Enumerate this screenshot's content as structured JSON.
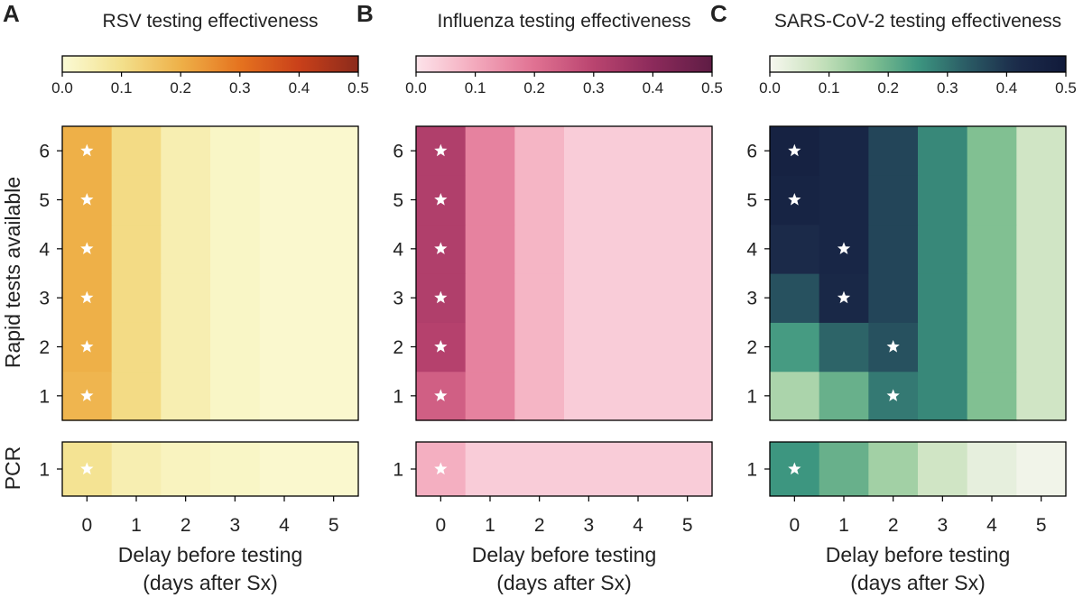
{
  "figure": {
    "ylabel_rapid": "Rapid tests available",
    "ylabel_pcr": "PCR",
    "xlabel_line1": "Delay before testing",
    "xlabel_line2": "(days after Sx)"
  },
  "chart_data": [
    {
      "type": "heatmap",
      "letter": "A",
      "title": "RSV testing effectiveness",
      "colormap": [
        "#fbfbd5",
        "#f3e08c",
        "#eeb048",
        "#e5731f",
        "#c9401a",
        "#8b2a1b"
      ],
      "colorbar": {
        "range": [
          0,
          0.5
        ],
        "ticks": [
          "0.0",
          "0.1",
          "0.2",
          "0.3",
          "0.4",
          "0.5"
        ]
      },
      "x": [
        0,
        1,
        2,
        3,
        4,
        5
      ],
      "x_ticks": [
        "0",
        "1",
        "2",
        "3",
        "4",
        "5"
      ],
      "rapid": {
        "y": [
          1,
          2,
          3,
          4,
          5,
          6
        ],
        "y_ticks": [
          "1",
          "2",
          "3",
          "4",
          "5",
          "6"
        ],
        "values": [
          [
            0.19,
            0.11,
            0.05,
            0.02,
            0.01,
            0.01
          ],
          [
            0.2,
            0.11,
            0.05,
            0.02,
            0.01,
            0.01
          ],
          [
            0.2,
            0.11,
            0.05,
            0.02,
            0.01,
            0.01
          ],
          [
            0.2,
            0.11,
            0.05,
            0.02,
            0.01,
            0.01
          ],
          [
            0.2,
            0.11,
            0.05,
            0.02,
            0.01,
            0.01
          ],
          [
            0.2,
            0.11,
            0.05,
            0.02,
            0.01,
            0.01
          ]
        ],
        "stars": [
          [
            0,
            0
          ],
          [
            0,
            1
          ],
          [
            0,
            2
          ],
          [
            0,
            3
          ],
          [
            0,
            4
          ],
          [
            0,
            5
          ]
        ]
      },
      "pcr": {
        "y_ticks": [
          "1"
        ],
        "values": [
          [
            0.09,
            0.05,
            0.03,
            0.02,
            0.01,
            0.01
          ]
        ],
        "stars": [
          [
            0,
            0
          ]
        ]
      }
    },
    {
      "type": "heatmap",
      "letter": "B",
      "title": "Influenza testing effectiveness",
      "colormap": [
        "#fde4ea",
        "#f3a9bc",
        "#e07192",
        "#b9446f",
        "#8c2a5b",
        "#5e1c44"
      ],
      "colorbar": {
        "range": [
          0,
          0.5
        ],
        "ticks": [
          "0.0",
          "0.1",
          "0.2",
          "0.3",
          "0.4",
          "0.5"
        ]
      },
      "x": [
        0,
        1,
        2,
        3,
        4,
        5
      ],
      "x_ticks": [
        "0",
        "1",
        "2",
        "3",
        "4",
        "5"
      ],
      "rapid": {
        "y": [
          1,
          2,
          3,
          4,
          5,
          6
        ],
        "y_ticks": [
          "1",
          "2",
          "3",
          "4",
          "5",
          "6"
        ],
        "values": [
          [
            0.24,
            0.17,
            0.08,
            0.04,
            0.04,
            0.04
          ],
          [
            0.31,
            0.17,
            0.08,
            0.04,
            0.04,
            0.04
          ],
          [
            0.32,
            0.17,
            0.08,
            0.04,
            0.04,
            0.04
          ],
          [
            0.32,
            0.17,
            0.08,
            0.04,
            0.04,
            0.04
          ],
          [
            0.32,
            0.17,
            0.08,
            0.04,
            0.04,
            0.04
          ],
          [
            0.32,
            0.17,
            0.08,
            0.04,
            0.04,
            0.04
          ]
        ],
        "stars": [
          [
            0,
            0
          ],
          [
            0,
            1
          ],
          [
            0,
            2
          ],
          [
            0,
            3
          ],
          [
            0,
            4
          ],
          [
            0,
            5
          ]
        ]
      },
      "pcr": {
        "y_ticks": [
          "1"
        ],
        "values": [
          [
            0.09,
            0.04,
            0.04,
            0.04,
            0.04,
            0.04
          ]
        ],
        "stars": [
          [
            0,
            0
          ]
        ]
      }
    },
    {
      "type": "heatmap",
      "letter": "C",
      "title": "SARS-CoV-2 testing effectiveness",
      "colormap": [
        "#f7f7ef",
        "#c9e2bd",
        "#84c293",
        "#3d9680",
        "#2a5a64",
        "#1b2b4a",
        "#111a3a"
      ],
      "colorbar": {
        "range": [
          0,
          0.5
        ],
        "ticks": [
          "0.0",
          "0.1",
          "0.2",
          "0.3",
          "0.4",
          "0.5"
        ]
      },
      "x": [
        0,
        1,
        2,
        3,
        4,
        5
      ],
      "x_ticks": [
        "0",
        "1",
        "2",
        "3",
        "4",
        "5"
      ],
      "rapid": {
        "y": [
          1,
          2,
          3,
          4,
          5,
          6
        ],
        "y_ticks": [
          "1",
          "2",
          "3",
          "4",
          "5",
          "6"
        ],
        "values": [
          [
            0.12,
            0.2,
            0.29,
            0.27,
            0.17,
            0.07
          ],
          [
            0.24,
            0.32,
            0.35,
            0.27,
            0.17,
            0.07
          ],
          [
            0.35,
            0.43,
            0.37,
            0.27,
            0.17,
            0.07
          ],
          [
            0.42,
            0.44,
            0.37,
            0.27,
            0.17,
            0.07
          ],
          [
            0.45,
            0.44,
            0.37,
            0.27,
            0.17,
            0.07
          ],
          [
            0.46,
            0.44,
            0.37,
            0.27,
            0.17,
            0.07
          ]
        ],
        "stars": [
          [
            2,
            0
          ],
          [
            2,
            1
          ],
          [
            1,
            2
          ],
          [
            1,
            3
          ],
          [
            0,
            4
          ],
          [
            0,
            5
          ]
        ]
      },
      "pcr": {
        "y_ticks": [
          "1"
        ],
        "values": [
          [
            0.25,
            0.2,
            0.13,
            0.07,
            0.03,
            0.01
          ]
        ],
        "stars": [
          [
            0,
            0
          ]
        ]
      }
    }
  ]
}
